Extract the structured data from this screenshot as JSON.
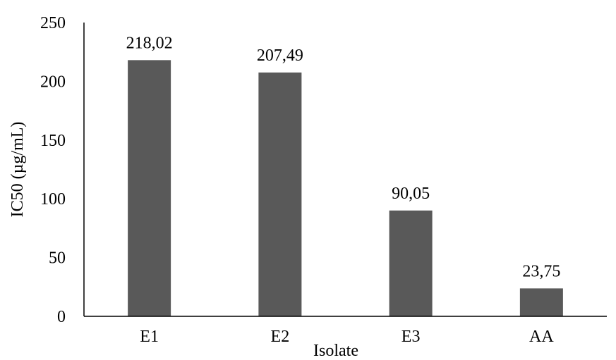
{
  "chart_data": {
    "type": "bar",
    "categories": [
      "E1",
      "E2",
      "E3",
      "AA"
    ],
    "values": [
      218.02,
      207.49,
      90.05,
      23.75
    ],
    "data_labels": [
      "218,02",
      "207,49",
      "90,05",
      "23,75"
    ],
    "xlabel": "Isolate",
    "ylabel": "IC50 (µg/mL)",
    "ylim": [
      0,
      250
    ],
    "yticks": [
      0,
      50,
      100,
      150,
      200,
      250
    ],
    "ytick_labels": [
      "0",
      "50",
      "100",
      "150",
      "200",
      "250"
    ],
    "grid": false,
    "legend": "none",
    "bar_color": "#595959"
  }
}
